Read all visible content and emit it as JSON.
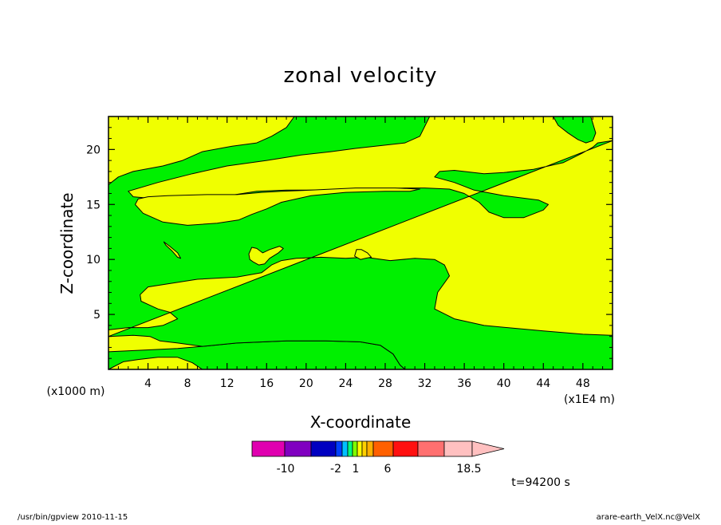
{
  "footer": {
    "left": "/usr/bin/gpview   2010-11-15",
    "right": "arare-earth_VelX.nc@VelX"
  },
  "chart_data": {
    "type": "heatmap",
    "title": "zonal velocity",
    "xlabel": "X-coordinate",
    "ylabel": "Z-coordinate",
    "x_scale_note": "(x1E4 m)",
    "y_scale_note": "(x1000 m)",
    "xlim": [
      0,
      51
    ],
    "ylim": [
      0,
      23
    ],
    "x_ticks": [
      4,
      8,
      12,
      16,
      20,
      24,
      28,
      32,
      36,
      40,
      44,
      48
    ],
    "y_ticks": [
      5,
      10,
      15,
      20
    ],
    "grid": false,
    "annotation": "t=94200 s",
    "regions": [
      {
        "name": "background",
        "color": "#f0ff00",
        "points": [
          [
            0,
            0
          ],
          [
            51,
            0
          ],
          [
            51,
            23
          ],
          [
            0,
            23
          ]
        ]
      },
      {
        "name": "green-bottom-band",
        "color": "#00f000",
        "points": [
          [
            0,
            0
          ],
          [
            0,
            1.6
          ],
          [
            4.5,
            1.8
          ],
          [
            7,
            1.9
          ],
          [
            9.5,
            2.1
          ],
          [
            13,
            2.4
          ],
          [
            18,
            2.6
          ],
          [
            22,
            2.6
          ],
          [
            25.5,
            2.5
          ],
          [
            27.5,
            2.2
          ],
          [
            28.8,
            1.4
          ],
          [
            29.5,
            0.4
          ],
          [
            30,
            0
          ],
          [
            9.5,
            0
          ],
          [
            8.5,
            0.6
          ],
          [
            7,
            1.1
          ],
          [
            5,
            1.1
          ],
          [
            3,
            0.9
          ],
          [
            1.5,
            0.7
          ]
        ]
      },
      {
        "name": "green-main",
        "color": "#00f000",
        "points": [
          [
            0,
            3.0
          ],
          [
            2.5,
            3.1
          ],
          [
            4.2,
            3.0
          ],
          [
            5.2,
            2.6
          ],
          [
            7,
            2.4
          ],
          [
            9.5,
            2.1
          ],
          [
            13,
            2.4
          ],
          [
            18,
            2.6
          ],
          [
            22,
            2.6
          ],
          [
            25.5,
            2.5
          ],
          [
            27.5,
            2.2
          ],
          [
            28.8,
            1.4
          ],
          [
            29.5,
            0.4
          ],
          [
            30,
            0
          ],
          [
            51,
            0
          ],
          [
            51,
            3.1
          ],
          [
            48,
            3.2
          ],
          [
            44,
            3.5
          ],
          [
            38,
            4.0
          ],
          [
            35,
            4.6
          ],
          [
            33,
            5.5
          ],
          [
            33.3,
            7.0
          ],
          [
            34.5,
            8.5
          ],
          [
            34,
            9.5
          ],
          [
            33,
            10.0
          ],
          [
            31,
            10.1
          ],
          [
            28.5,
            9.9
          ],
          [
            26,
            10.2
          ],
          [
            24,
            10.1
          ],
          [
            21.5,
            10.2
          ],
          [
            19,
            10.1
          ],
          [
            17.5,
            9.9
          ],
          [
            16.5,
            9.5
          ],
          [
            15.5,
            8.8
          ],
          [
            13,
            8.4
          ],
          [
            9,
            8.2
          ],
          [
            4,
            7.5
          ],
          [
            3.2,
            6.8
          ],
          [
            3.3,
            6.2
          ],
          [
            5,
            5.5
          ],
          [
            6.2,
            5.2
          ],
          [
            7,
            4.6
          ],
          [
            5.5,
            4.0
          ],
          [
            4,
            3.8
          ],
          [
            2,
            3.8
          ],
          [
            0,
            3.6
          ],
          [
            0,
            16.8
          ],
          [
            1,
            17.5
          ],
          [
            2.5,
            18.0
          ],
          [
            5.5,
            18.5
          ],
          [
            7.5,
            19.0
          ],
          [
            9.5,
            19.8
          ],
          [
            12.5,
            20.3
          ],
          [
            15,
            20.6
          ],
          [
            16.5,
            21.2
          ],
          [
            18,
            22.0
          ],
          [
            18.8,
            23
          ],
          [
            32.5,
            23
          ],
          [
            31.5,
            21.2
          ],
          [
            30,
            20.6
          ],
          [
            27,
            20.3
          ],
          [
            25,
            20.1
          ],
          [
            22.5,
            19.8
          ],
          [
            19.5,
            19.5
          ],
          [
            16,
            19.0
          ],
          [
            12,
            18.5
          ],
          [
            8.5,
            17.8
          ],
          [
            5,
            17.0
          ],
          [
            2,
            16.2
          ],
          [
            2.5,
            15.7
          ],
          [
            5,
            15.5
          ],
          [
            10,
            15.5
          ],
          [
            15,
            16.2
          ],
          [
            18,
            16.3
          ],
          [
            22,
            16.3
          ],
          [
            26,
            16.4
          ],
          [
            30,
            16.5
          ],
          [
            32,
            16.5
          ],
          [
            34.5,
            16.4
          ],
          [
            36,
            16.0
          ],
          [
            37.5,
            15.2
          ],
          [
            38.5,
            14.3
          ],
          [
            40,
            13.8
          ],
          [
            42,
            13.8
          ],
          [
            44,
            14.5
          ],
          [
            44.5,
            15.0
          ],
          [
            43.5,
            15.4
          ],
          [
            40,
            15.8
          ],
          [
            37,
            16.3
          ],
          [
            35,
            17.0
          ],
          [
            33,
            17.5
          ],
          [
            33.5,
            18.0
          ],
          [
            35,
            18.1
          ],
          [
            38,
            17.8
          ],
          [
            40,
            17.9
          ],
          [
            43,
            18.2
          ],
          [
            46,
            18.8
          ],
          [
            48,
            19.7
          ],
          [
            49,
            20.2
          ],
          [
            49.5,
            20.6
          ],
          [
            51,
            20.8
          ]
        ]
      },
      {
        "name": "yellow-mid-lens",
        "color": "#f0ff00",
        "points": [
          [
            2.7,
            15.0
          ],
          [
            3.5,
            14.2
          ],
          [
            5.5,
            13.4
          ],
          [
            8,
            13.1
          ],
          [
            11,
            13.3
          ],
          [
            13.2,
            13.6
          ],
          [
            14.5,
            14.1
          ],
          [
            16,
            14.6
          ],
          [
            17.5,
            15.2
          ],
          [
            20.5,
            15.8
          ],
          [
            24,
            16.1
          ],
          [
            28,
            16.2
          ],
          [
            30.5,
            16.2
          ],
          [
            31.5,
            16.4
          ],
          [
            29,
            16.5
          ],
          [
            25,
            16.5
          ],
          [
            20.5,
            16.3
          ],
          [
            17.5,
            16.2
          ],
          [
            15.5,
            16.1
          ],
          [
            13,
            15.9
          ],
          [
            10,
            15.9
          ],
          [
            6,
            15.8
          ],
          [
            4,
            15.7
          ],
          [
            3,
            15.5
          ]
        ]
      },
      {
        "name": "green-top-right-blob",
        "color": "#00f000",
        "points": [
          [
            45,
            23
          ],
          [
            45.5,
            22.2
          ],
          [
            46.5,
            21.5
          ],
          [
            47.5,
            20.9
          ],
          [
            48.3,
            20.6
          ],
          [
            49,
            20.8
          ],
          [
            49.3,
            21.5
          ],
          [
            49,
            22.4
          ],
          [
            48.8,
            23
          ]
        ]
      },
      {
        "name": "yellow-sliver-1",
        "color": "#f0ff00",
        "points": [
          [
            5.6,
            11.6
          ],
          [
            6.2,
            11.2
          ],
          [
            7,
            10.6
          ],
          [
            7.3,
            10.1
          ],
          [
            7,
            10.2
          ],
          [
            6.4,
            10.8
          ],
          [
            5.8,
            11.3
          ]
        ]
      },
      {
        "name": "yellow-blob-2",
        "color": "#f0ff00",
        "points": [
          [
            14.3,
            10.0
          ],
          [
            14.2,
            10.5
          ],
          [
            14.5,
            11.1
          ],
          [
            15,
            11.0
          ],
          [
            15.6,
            10.6
          ],
          [
            16.3,
            10.9
          ],
          [
            17.3,
            11.2
          ],
          [
            17.7,
            11.0
          ],
          [
            17.2,
            10.6
          ],
          [
            16.3,
            10.1
          ],
          [
            15.8,
            9.6
          ],
          [
            15.2,
            9.5
          ],
          [
            14.6,
            9.8
          ]
        ]
      },
      {
        "name": "yellow-blob-3",
        "color": "#f0ff00",
        "points": [
          [
            24.9,
            10.3
          ],
          [
            25.1,
            10.9
          ],
          [
            25.6,
            10.9
          ],
          [
            26.2,
            10.6
          ],
          [
            26.6,
            10.2
          ],
          [
            26,
            10.1
          ],
          [
            25.5,
            10.0
          ]
        ]
      }
    ],
    "colorbar": {
      "colors": [
        "#e000b0",
        "#8000c0",
        "#0000c0",
        "#0040ff",
        "#00c0ff",
        "#00ff80",
        "#80ff00",
        "#ffff00",
        "#ffd000",
        "#ffb000",
        "#ff6000",
        "#ff1010",
        "#ff7070",
        "#ffc0c0"
      ],
      "labels": [
        "-10",
        "-2",
        "1",
        "6",
        "18.5"
      ]
    }
  }
}
